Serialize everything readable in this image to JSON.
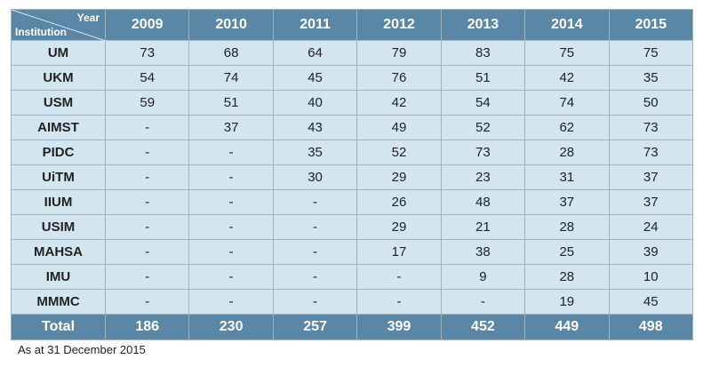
{
  "table": {
    "corner": {
      "top": "Year",
      "bottom": "Institution"
    },
    "columns": [
      2009,
      2010,
      2011,
      2012,
      2013,
      2014,
      2015
    ],
    "rows": [
      {
        "label": "UM",
        "cells": [
          73,
          68,
          64,
          79,
          83,
          75,
          75
        ]
      },
      {
        "label": "UKM",
        "cells": [
          54,
          74,
          45,
          76,
          51,
          42,
          35
        ]
      },
      {
        "label": "USM",
        "cells": [
          59,
          51,
          40,
          42,
          54,
          74,
          50
        ]
      },
      {
        "label": "AIMST",
        "cells": [
          "-",
          37,
          43,
          49,
          52,
          62,
          73
        ]
      },
      {
        "label": "PIDC",
        "cells": [
          "-",
          "-",
          35,
          52,
          73,
          28,
          73
        ]
      },
      {
        "label": "UiTM",
        "cells": [
          "-",
          "-",
          30,
          29,
          23,
          31,
          37
        ]
      },
      {
        "label": "IIUM",
        "cells": [
          "-",
          "-",
          "-",
          26,
          48,
          37,
          37
        ]
      },
      {
        "label": "USIM",
        "cells": [
          "-",
          "-",
          "-",
          29,
          21,
          28,
          24
        ]
      },
      {
        "label": "MAHSA",
        "cells": [
          "-",
          "-",
          "-",
          17,
          38,
          25,
          39
        ]
      },
      {
        "label": "IMU",
        "cells": [
          "-",
          "-",
          "-",
          "-",
          9,
          28,
          10
        ]
      },
      {
        "label": "MMMC",
        "cells": [
          "-",
          "-",
          "-",
          "-",
          "-",
          19,
          45
        ]
      }
    ],
    "total": {
      "label": "Total",
      "cells": [
        186,
        230,
        257,
        399,
        452,
        449,
        498
      ]
    }
  },
  "footnote": "As at 31 December 2015"
}
